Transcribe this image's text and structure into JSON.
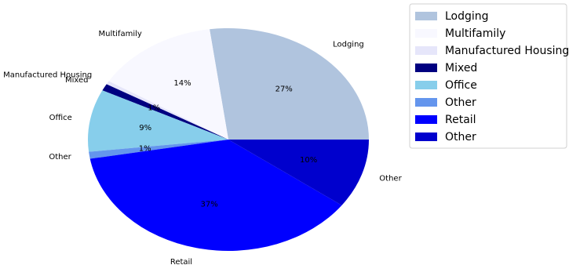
{
  "chart_data": {
    "type": "pie",
    "title": "",
    "slices": [
      {
        "label": "Lodging",
        "value": 27,
        "pct_label": "27%",
        "color": "#b0c4de"
      },
      {
        "label": "Multifamily",
        "value": 14,
        "pct_label": "14%",
        "color": "#f8f8ff"
      },
      {
        "label": "Manufactured Housing",
        "value": 0.5,
        "pct_label": "",
        "color": "#e6e6fa"
      },
      {
        "label": "Mixed",
        "value": 1,
        "pct_label": "1%",
        "color": "#000080"
      },
      {
        "label": "Office",
        "value": 9,
        "pct_label": "9%",
        "color": "#87ceeb"
      },
      {
        "label": "Other",
        "value": 1,
        "pct_label": "1%",
        "color": "#6495ed"
      },
      {
        "label": "Retail",
        "value": 37,
        "pct_label": "37%",
        "color": "#0000ff"
      },
      {
        "label": "Other",
        "value": 10,
        "pct_label": "10%",
        "color": "#0000cd"
      }
    ],
    "legend": {
      "placement": "upper-right",
      "entries": [
        "Lodging",
        "Multifamily",
        "Manufactured Housing",
        "Mixed",
        "Office",
        "Other",
        "Retail",
        "Other"
      ]
    },
    "start_angle_deg": 0,
    "direction": "counterclockwise"
  }
}
